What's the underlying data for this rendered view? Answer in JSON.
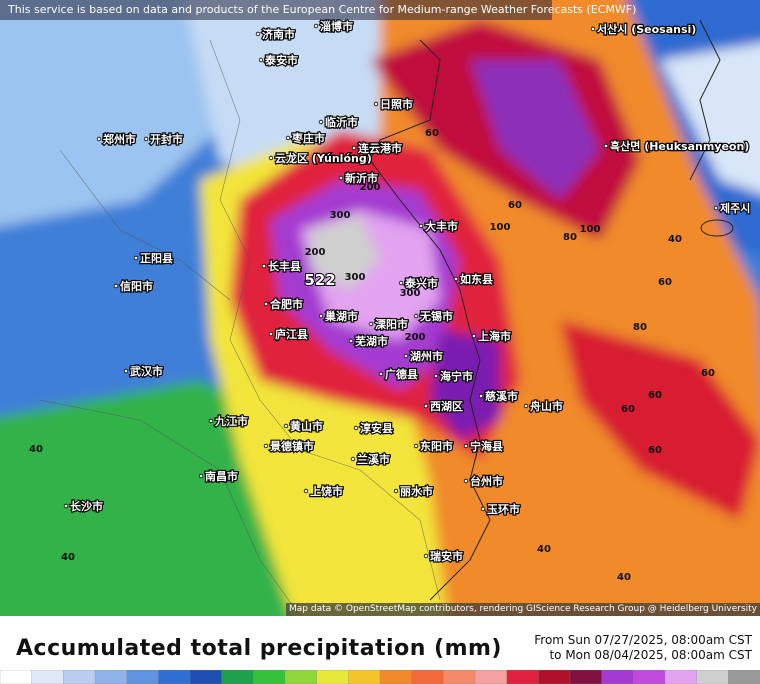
{
  "notice": "This service is based on data and products of the European Centre for Medium-range Weather Forecasts (ECMWF)",
  "attribution": "Map data © OpenStreetMap contributors, rendering GIScience Research Group @ Heidelberg University",
  "title": "Accumulated total precipitation (mm)",
  "period": {
    "from": "From Sun 07/27/2025, 08:00am CST",
    "to": "to Mon 08/04/2025, 08:00am CST"
  },
  "places": [
    "济南市",
    "淄博市",
    "泰安市",
    "郑州市",
    "开封市",
    "临沂市",
    "日照市",
    "枣庄市",
    "云龙区 (Yúnlóng)",
    "连云港市",
    "新沂市",
    "大丰市",
    "正阳县",
    "信阳市",
    "长丰县",
    "如东县",
    "泰兴市",
    "合肥市",
    "巢湖市",
    "无锡市",
    "溧阳市",
    "上海市",
    "庐江县",
    "芜湖市",
    "湖州市",
    "广德县",
    "海宁市",
    "慈溪市",
    "武汉市",
    "西湖区",
    "舟山市",
    "九江市",
    "淳安县",
    "黄山市",
    "景德镇市",
    "东阳市",
    "宁海县",
    "兰溪市",
    "南昌市",
    "台州市",
    "丽水市",
    "上饶市",
    "长沙市",
    "玉环市",
    "瑞安市",
    "서산시 (Seosansi)",
    "흑산면 (Heuksanmyeon)",
    "제주시"
  ],
  "contour_labels": [
    522,
    300,
    300,
    300,
    200,
    200,
    200,
    100,
    100,
    80,
    80,
    60,
    60,
    60,
    60,
    60,
    60,
    60,
    40,
    40,
    40,
    40,
    40
  ]
}
